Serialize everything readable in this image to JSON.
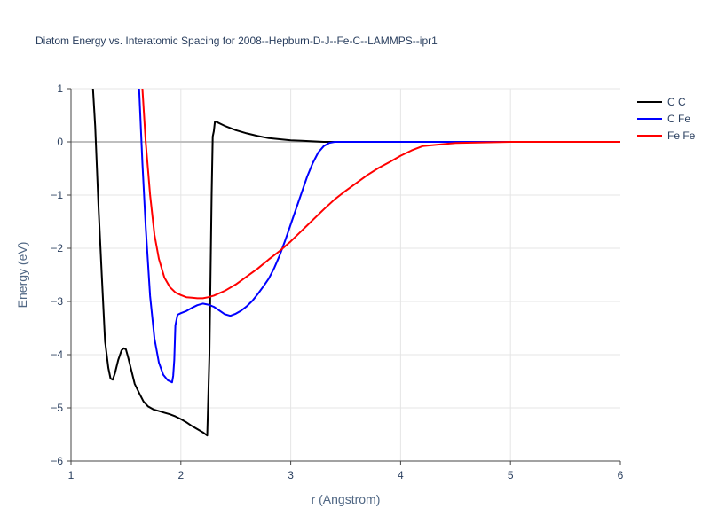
{
  "chart_data": {
    "type": "line",
    "title": "Diatom Energy vs. Interatomic Spacing for 2008--Hepburn-D-J--Fe-C--LAMMPS--ipr1",
    "xlabel": "r (Angstrom)",
    "ylabel": "Energy (eV)",
    "xlim": [
      1,
      6
    ],
    "ylim": [
      -6,
      1
    ],
    "x_ticks": [
      "1",
      "2",
      "3",
      "4",
      "5",
      "6"
    ],
    "y_ticks": [
      "1",
      "0",
      "−1",
      "−2",
      "−3",
      "−4",
      "−5",
      "−6"
    ],
    "grid": true,
    "legend_position": "top-right",
    "series": [
      {
        "name": "C C",
        "color": "#000000",
        "x": [
          1.2,
          1.22,
          1.25,
          1.28,
          1.31,
          1.34,
          1.36,
          1.38,
          1.4,
          1.43,
          1.46,
          1.48,
          1.5,
          1.52,
          1.55,
          1.58,
          1.62,
          1.66,
          1.7,
          1.75,
          1.8,
          1.85,
          1.9,
          1.95,
          2.0,
          2.05,
          2.1,
          2.15,
          2.2,
          2.24,
          2.26,
          2.28,
          2.29,
          2.3,
          2.31,
          2.33,
          2.36,
          2.4,
          2.45,
          2.5,
          2.6,
          2.7,
          2.8,
          2.9,
          3.0,
          3.1,
          3.2,
          3.3,
          3.4,
          3.6,
          3.8,
          4.0,
          4.5,
          5.0,
          5.5,
          6.0
        ],
        "y": [
          1.0,
          0.3,
          -1.2,
          -2.5,
          -3.75,
          -4.25,
          -4.45,
          -4.47,
          -4.35,
          -4.1,
          -3.92,
          -3.88,
          -3.9,
          -4.05,
          -4.3,
          -4.55,
          -4.72,
          -4.88,
          -4.97,
          -5.03,
          -5.06,
          -5.09,
          -5.12,
          -5.16,
          -5.21,
          -5.27,
          -5.34,
          -5.4,
          -5.46,
          -5.52,
          -4.0,
          -1.0,
          0.1,
          0.2,
          0.38,
          0.37,
          0.34,
          0.3,
          0.26,
          0.22,
          0.16,
          0.11,
          0.07,
          0.05,
          0.03,
          0.02,
          0.01,
          0.0,
          0.0,
          0.0,
          0.0,
          0.0,
          0.0,
          0.0,
          0.0,
          0.0
        ]
      },
      {
        "name": "C Fe",
        "color": "#0000ff",
        "x": [
          1.62,
          1.65,
          1.68,
          1.72,
          1.76,
          1.8,
          1.84,
          1.88,
          1.92,
          1.93,
          1.94,
          1.95,
          1.97,
          2.0,
          2.05,
          2.1,
          2.15,
          2.2,
          2.25,
          2.3,
          2.35,
          2.4,
          2.45,
          2.5,
          2.55,
          2.6,
          2.65,
          2.7,
          2.75,
          2.8,
          2.85,
          2.9,
          2.95,
          3.0,
          3.05,
          3.1,
          3.15,
          3.2,
          3.25,
          3.3,
          3.35,
          3.4,
          3.45,
          3.5,
          4.0,
          5.0,
          6.0
        ],
        "y": [
          1.0,
          -0.4,
          -1.6,
          -2.9,
          -3.7,
          -4.15,
          -4.38,
          -4.48,
          -4.52,
          -4.4,
          -4.1,
          -3.45,
          -3.25,
          -3.22,
          -3.18,
          -3.12,
          -3.07,
          -3.04,
          -3.06,
          -3.1,
          -3.17,
          -3.24,
          -3.27,
          -3.23,
          -3.17,
          -3.09,
          -2.99,
          -2.86,
          -2.72,
          -2.57,
          -2.37,
          -2.13,
          -1.85,
          -1.55,
          -1.25,
          -0.95,
          -0.65,
          -0.4,
          -0.2,
          -0.08,
          -0.02,
          0.0,
          0.0,
          0.0,
          0.0,
          0.0,
          0.0
        ]
      },
      {
        "name": "Fe Fe",
        "color": "#ff0000",
        "x": [
          1.65,
          1.68,
          1.72,
          1.76,
          1.8,
          1.85,
          1.9,
          1.95,
          2.0,
          2.05,
          2.1,
          2.15,
          2.2,
          2.25,
          2.3,
          2.4,
          2.5,
          2.6,
          2.7,
          2.8,
          2.9,
          3.0,
          3.1,
          3.2,
          3.3,
          3.4,
          3.5,
          3.6,
          3.7,
          3.8,
          3.9,
          4.0,
          4.1,
          4.2,
          4.5,
          5.0,
          5.5,
          6.0
        ],
        "y": [
          1.0,
          0.0,
          -1.0,
          -1.75,
          -2.2,
          -2.55,
          -2.73,
          -2.83,
          -2.88,
          -2.92,
          -2.93,
          -2.94,
          -2.94,
          -2.92,
          -2.89,
          -2.8,
          -2.68,
          -2.53,
          -2.38,
          -2.21,
          -2.05,
          -1.87,
          -1.67,
          -1.47,
          -1.27,
          -1.08,
          -0.92,
          -0.77,
          -0.62,
          -0.49,
          -0.38,
          -0.26,
          -0.16,
          -0.08,
          -0.02,
          0.0,
          0.0,
          0.0
        ]
      }
    ]
  }
}
